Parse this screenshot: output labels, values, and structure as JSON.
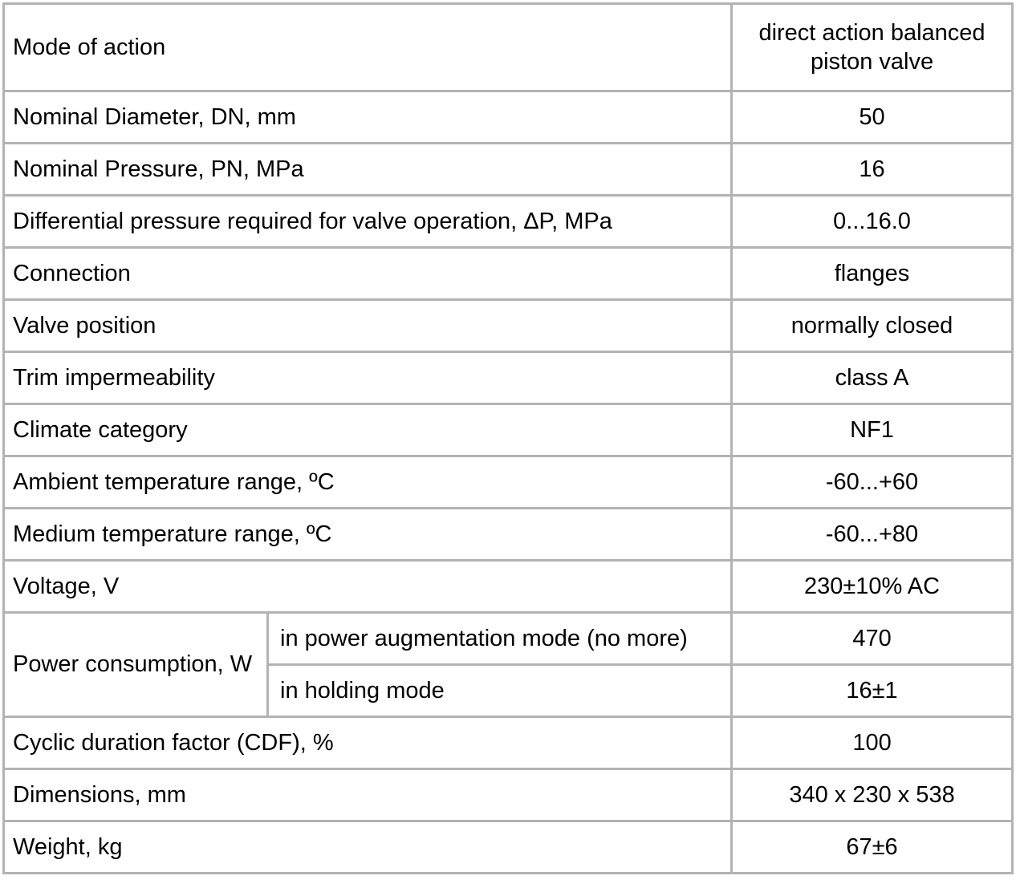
{
  "table": {
    "border_color": "#b3b3b3",
    "text_color": "#000000",
    "rows": [
      {
        "label": "Mode of action",
        "value": "direct action balanced piston valve"
      },
      {
        "label": "Nominal Diameter, DN, mm",
        "value": "50"
      },
      {
        "label": "Nominal Pressure, PN, MPa",
        "value": "16"
      },
      {
        "label": "Differential pressure required for valve operation, ΔP, MPa",
        "value": "0...16.0"
      },
      {
        "label": "Connection",
        "value": "flanges"
      },
      {
        "label": "Valve position",
        "value": "normally closed"
      },
      {
        "label": "Trim impermeability",
        "value": "class A"
      },
      {
        "label": "Climate category",
        "value": "NF1"
      },
      {
        "label": "Ambient temperature range, ºC",
        "value": "-60...+60"
      },
      {
        "label": "Medium temperature range, ºC",
        "value": "-60...+80"
      },
      {
        "label": "Voltage, V",
        "value": "230±10% AC"
      }
    ],
    "power_consumption": {
      "label": "Power consumption, W",
      "sub_rows": [
        {
          "label": "in power augmentation mode (no more)",
          "value": "470"
        },
        {
          "label": "in holding mode",
          "value": "16±1"
        }
      ]
    },
    "rows_bottom": [
      {
        "label": "Cyclic duration factor (CDF), %",
        "value": "100"
      },
      {
        "label": "Dimensions, mm",
        "value": "340 x 230 x 538"
      },
      {
        "label": "Weight, kg",
        "value": "67±6"
      }
    ]
  }
}
